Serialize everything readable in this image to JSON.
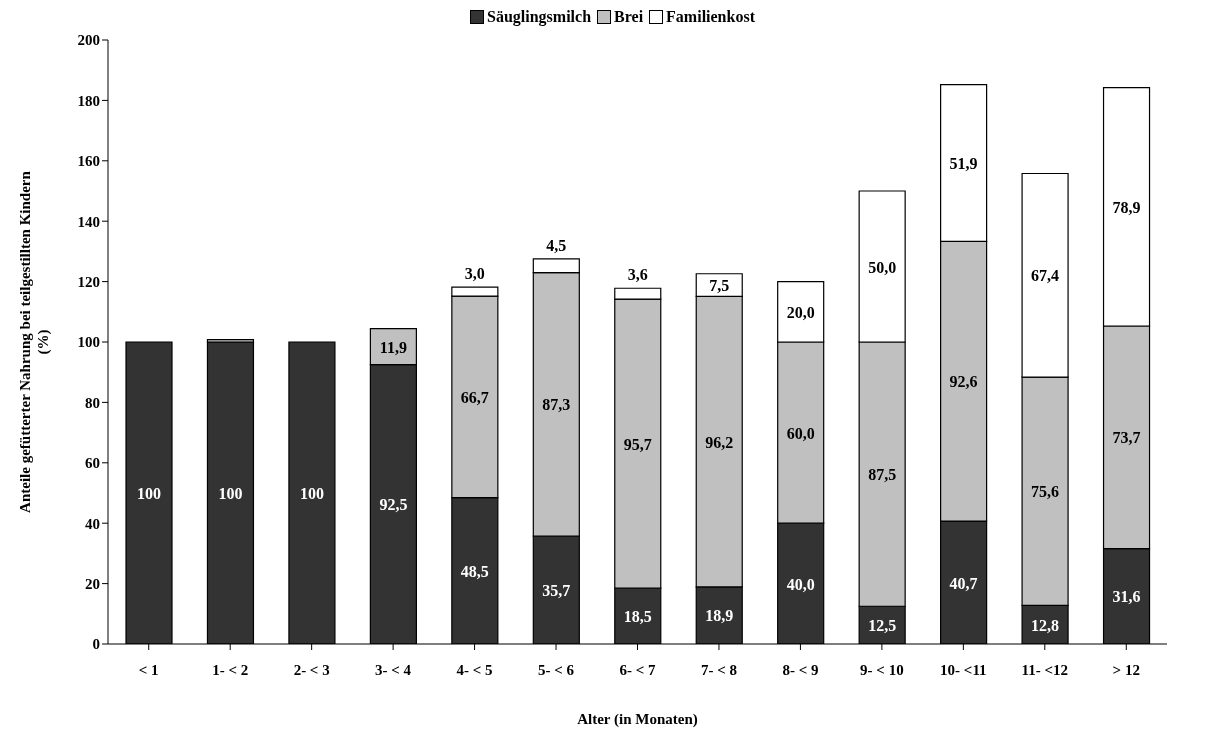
{
  "chart_data": {
    "type": "bar",
    "stacked": true,
    "xlabel": "Alter (in Monaten)",
    "ylabel": "Anteile gefütterter Nahrung bei teilgestillten Kindern (%)",
    "categories": [
      "< 1",
      "1- < 2",
      "2- < 3",
      "3- < 4",
      "4- < 5",
      "5- < 6",
      "6- < 7",
      "7- < 8",
      "8- < 9",
      "9- < 10",
      "10- <11",
      "11- <12",
      "> 12"
    ],
    "series": [
      {
        "name": "Säuglingsmilch",
        "color": "#333333",
        "values": [
          100,
          100,
          100,
          92.5,
          48.5,
          35.7,
          18.5,
          18.9,
          40.0,
          12.5,
          40.7,
          12.8,
          31.6
        ],
        "value_labels": [
          "100",
          "100",
          "100",
          "92,5",
          "48,5",
          "35,7",
          "18,5",
          "18,9",
          "40,0",
          "12,5",
          "40,7",
          "12,8",
          "31,6"
        ]
      },
      {
        "name": "Brei",
        "color": "#c0c0c0",
        "values": [
          null,
          0.8,
          null,
          11.9,
          66.7,
          87.3,
          95.7,
          96.2,
          60.0,
          87.5,
          92.6,
          75.6,
          73.7
        ],
        "value_labels": [
          null,
          null,
          null,
          "11,9",
          "66,7",
          "87,3",
          "95,7",
          "96,2",
          "60,0",
          "87,5",
          "92,6",
          "75,6",
          "73,7"
        ]
      },
      {
        "name": "Familienkost",
        "color": "#ffffff",
        "values": [
          null,
          null,
          null,
          null,
          3.0,
          4.5,
          3.6,
          7.5,
          20.0,
          50.0,
          51.9,
          67.4,
          78.9
        ],
        "value_labels": [
          null,
          null,
          null,
          null,
          "3,0",
          "4,5",
          "3,6",
          "7,5",
          "20,0",
          "50,0",
          "51,9",
          "67,4",
          "78,9"
        ]
      }
    ],
    "ylim": [
      0,
      200
    ],
    "yticks": [
      0,
      20,
      40,
      60,
      80,
      100,
      120,
      140,
      160,
      180,
      200
    ],
    "grid": false,
    "legend": "top"
  }
}
